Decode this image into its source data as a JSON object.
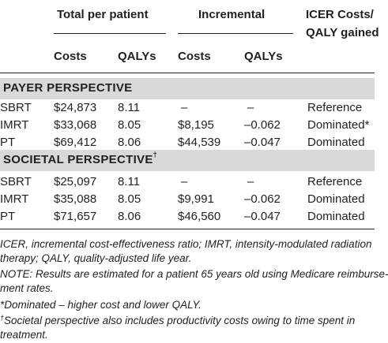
{
  "headers": {
    "total_per_patient": "Total per patient",
    "incremental": "Incremental",
    "icer_line1": "ICER Costs/",
    "icer_line2": "QALY gained",
    "costs": "Costs",
    "qalys": "QALYs",
    "costs2": "Costs",
    "qalys2": "QALYs"
  },
  "sections": [
    {
      "label": "PAYER PERSPECTIVE",
      "sup": "",
      "rows": [
        {
          "treatment": "SBRT",
          "total_costs": "$24,873",
          "total_qalys": "8.11",
          "inc_costs": "–",
          "inc_qalys": "–",
          "icer": "Reference"
        },
        {
          "treatment": "IMRT",
          "total_costs": "$33,068",
          "total_qalys": "8.05",
          "inc_costs": "$8,195",
          "inc_qalys": "–0.062",
          "icer": "Dominated*"
        },
        {
          "treatment": "PT",
          "total_costs": "$69,412",
          "total_qalys": "8.06",
          "inc_costs": "$44,539",
          "inc_qalys": "–0.047",
          "icer": "Dominated"
        }
      ]
    },
    {
      "label": "SOCIETAL PERSPECTIVE",
      "sup": "†",
      "rows": [
        {
          "treatment": "SBRT",
          "total_costs": "$25,097",
          "total_qalys": "8.11",
          "inc_costs": "–",
          "inc_qalys": "–",
          "icer": "Reference"
        },
        {
          "treatment": "IMRT",
          "total_costs": "$35,088",
          "total_qalys": "8.05",
          "inc_costs": "$9,991",
          "inc_qalys": "–0.062",
          "icer": "Dominated"
        },
        {
          "treatment": "PT",
          "total_costs": "$71,657",
          "total_qalys": "8.06",
          "inc_costs": "$46,560",
          "inc_qalys": "–0.047",
          "icer": "Dominated"
        }
      ]
    }
  ],
  "notes": [
    "ICER, incremental cost-effectiveness ratio; IMRT, intensity-modulated radiation",
    "therapy; QALY, quality-adjusted life year.",
    "NOTE: Results are estimated for a patient 65 years old using Medicare reimburse-",
    "ment rates.",
    "*Dominated – higher cost and lower QALY.",
    "Societal perspective also includes productivity costs owing to time spent in",
    "treatment."
  ],
  "dagger": "†"
}
